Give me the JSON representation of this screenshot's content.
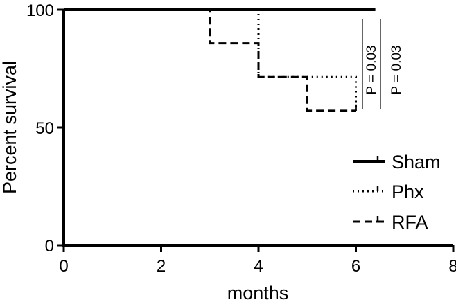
{
  "chart_data": {
    "type": "line",
    "xlabel": "months",
    "ylabel": "Percent survival",
    "xlim": [
      0,
      8
    ],
    "ylim": [
      0,
      100
    ],
    "xticks": [
      "0",
      "2",
      "4",
      "6",
      "8"
    ],
    "yticks": [
      "0",
      "50",
      "100"
    ],
    "grid": false,
    "legend_position": "bottom-right",
    "series": [
      {
        "name": "Sham",
        "style": "solid",
        "x": [
          0,
          6.4
        ],
        "y": [
          100,
          100
        ]
      },
      {
        "name": "Phx",
        "style": "dotted",
        "x": [
          0,
          4,
          4,
          6,
          6
        ],
        "y": [
          100,
          100,
          71.4,
          71.4,
          57.1
        ]
      },
      {
        "name": "RFA",
        "style": "dashed",
        "x": [
          0,
          3,
          3,
          4,
          4,
          5,
          5,
          6,
          6
        ],
        "y": [
          100,
          100,
          85.7,
          85.7,
          71.4,
          71.4,
          57.1,
          57.1,
          57.1
        ]
      }
    ],
    "annotations": [
      "P = 0.03",
      "P = 0.03"
    ],
    "colors": {
      "line": "#000000"
    }
  }
}
